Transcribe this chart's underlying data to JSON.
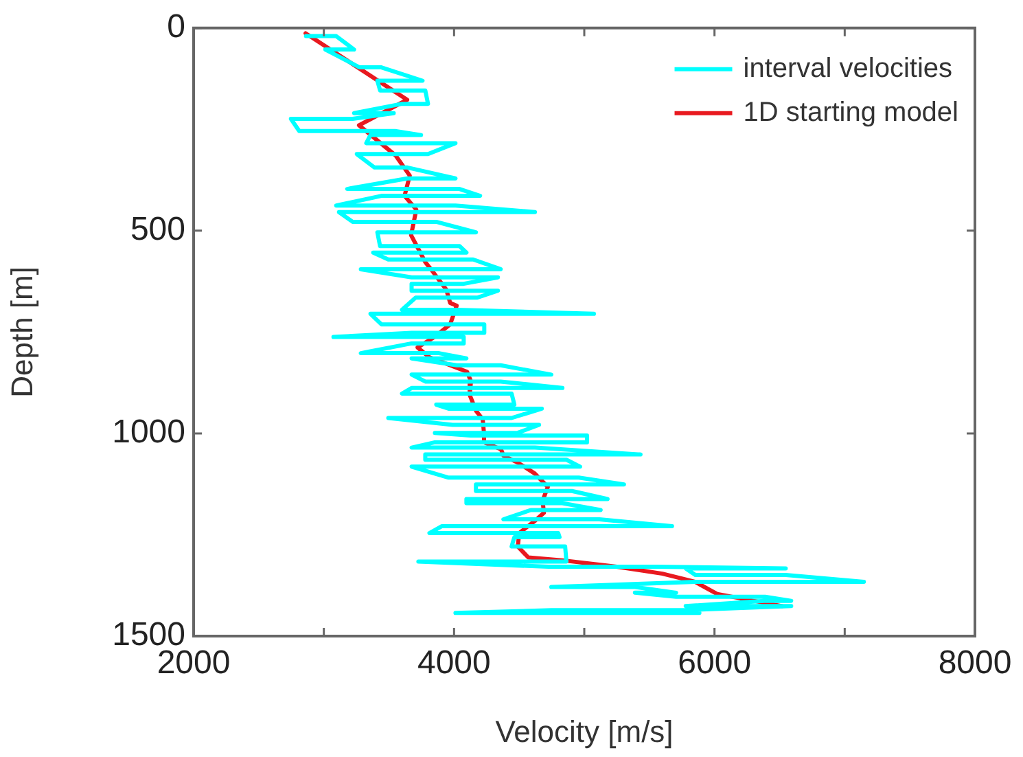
{
  "chart_data": {
    "type": "line",
    "xlabel": "Velocity [m/s]",
    "ylabel": "Depth [m]",
    "xlim": [
      2000,
      8000
    ],
    "xticks": [
      2000,
      {
        "value": 3000,
        "label": null
      },
      4000,
      {
        "value": 5000,
        "label": null
      },
      6000,
      {
        "value": 7000,
        "label": null
      },
      8000
    ],
    "ylim": [
      1500,
      0
    ],
    "yticks": [
      0,
      500,
      1000,
      1500
    ],
    "grid": false,
    "legend": "top right",
    "marker": "none",
    "line_style": "solid",
    "series": [
      {
        "name": "interval velocities",
        "color": "#00ffff",
        "x": [
          2863,
          3095,
          3232,
          3011,
          3274,
          3442,
          3758,
          3411,
          3432,
          3779,
          3800,
          3600,
          3232,
          3537,
          3221,
          2747,
          2811,
          3547,
          3747,
          3358,
          3326,
          4011,
          3800,
          3253,
          3389,
          3642,
          4011,
          3642,
          3179,
          4042,
          4200,
          3442,
          3095,
          4011,
          4621,
          3116,
          3221,
          3863,
          4168,
          3411,
          3432,
          4042,
          4095,
          3379,
          3495,
          4147,
          4358,
          3284,
          3674,
          4337,
          4074,
          3674,
          3674,
          4337,
          4179,
          3705,
          3600,
          4021,
          5074,
          3358,
          3442,
          4232,
          4232,
          3674,
          3074,
          4074,
          4074,
          3674,
          3284,
          3884,
          4095,
          3674,
          4021,
          4358,
          4747,
          3674,
          3779,
          4358,
          4832,
          3674,
          3600,
          4442,
          4463,
          3863,
          3958,
          4674,
          4442,
          3495,
          3989,
          4653,
          4484,
          3853,
          4126,
          5021,
          5021,
          3853,
          3674,
          4621,
          5432,
          3779,
          3779,
          4863,
          4968,
          3674,
          3958,
          4958,
          5305,
          4168,
          4168,
          4905,
          5179,
          4095,
          4095,
          4832,
          5126,
          4589,
          4379,
          5116,
          5674,
          3905,
          3811,
          4800,
          4810,
          4463,
          4442,
          4853,
          4863,
          3726,
          4726,
          5547,
          6547,
          5779,
          5853,
          6547,
          7147,
          5853,
          4747,
          5389,
          5705,
          5389,
          5705,
          6389,
          6589,
          6379,
          5779,
          6589,
          5779,
          4747,
          4011,
          5884
        ],
        "values": [
          20,
          20,
          53,
          53,
          97,
          97,
          130,
          130,
          154,
          154,
          187,
          187,
          210,
          210,
          224,
          224,
          254,
          254,
          264,
          264,
          284,
          284,
          311,
          311,
          344,
          344,
          371,
          371,
          397,
          397,
          414,
          414,
          438,
          438,
          454,
          454,
          478,
          478,
          504,
          504,
          538,
          538,
          554,
          554,
          571,
          571,
          595,
          595,
          615,
          615,
          631,
          631,
          648,
          648,
          665,
          665,
          695,
          695,
          705,
          705,
          731,
          731,
          752,
          752,
          762,
          762,
          778,
          778,
          802,
          802,
          815,
          815,
          832,
          832,
          855,
          855,
          872,
          872,
          888,
          888,
          902,
          902,
          929,
          929,
          939,
          939,
          962,
          962,
          979,
          979,
          999,
          999,
          1005,
          1005,
          1022,
          1022,
          1035,
          1035,
          1052,
          1052,
          1065,
          1065,
          1082,
          1082,
          1109,
          1109,
          1126,
          1126,
          1142,
          1142,
          1162,
          1162,
          1172,
          1172,
          1189,
          1189,
          1212,
          1212,
          1229,
          1229,
          1246,
          1246,
          1256,
          1256,
          1279,
          1279,
          1316,
          1316,
          1329,
          1329,
          1333,
          1333,
          1349,
          1349,
          1366,
          1366,
          1379,
          1379,
          1393,
          1393,
          1403,
          1403,
          1413,
          1413,
          1426,
          1426,
          1436,
          1436,
          1443,
          1443
        ]
      },
      {
        "name": "1D starting model",
        "color": "#e8191f",
        "x": [
          2860,
          3640,
          3270,
          3550,
          3660,
          3620,
          3710,
          3670,
          3780,
          3830,
          3940,
          3970,
          4020,
          3970,
          3850,
          3720,
          3810,
          4100,
          4130,
          4120,
          4170,
          4220,
          4230,
          4230,
          4360,
          4380,
          4490,
          4620,
          4720,
          4680,
          4690,
          4620,
          4500,
          4490,
          4570,
          4830,
          5250,
          5600,
          5850,
          6020,
          6520
        ],
        "values": [
          13,
          177,
          240,
          314,
          364,
          414,
          448,
          511,
          578,
          598,
          645,
          678,
          685,
          731,
          762,
          788,
          812,
          848,
          872,
          905,
          945,
          965,
          1000,
          1022,
          1039,
          1055,
          1072,
          1099,
          1132,
          1166,
          1196,
          1216,
          1246,
          1279,
          1306,
          1313,
          1329,
          1346,
          1366,
          1396,
          1426
        ]
      }
    ]
  }
}
